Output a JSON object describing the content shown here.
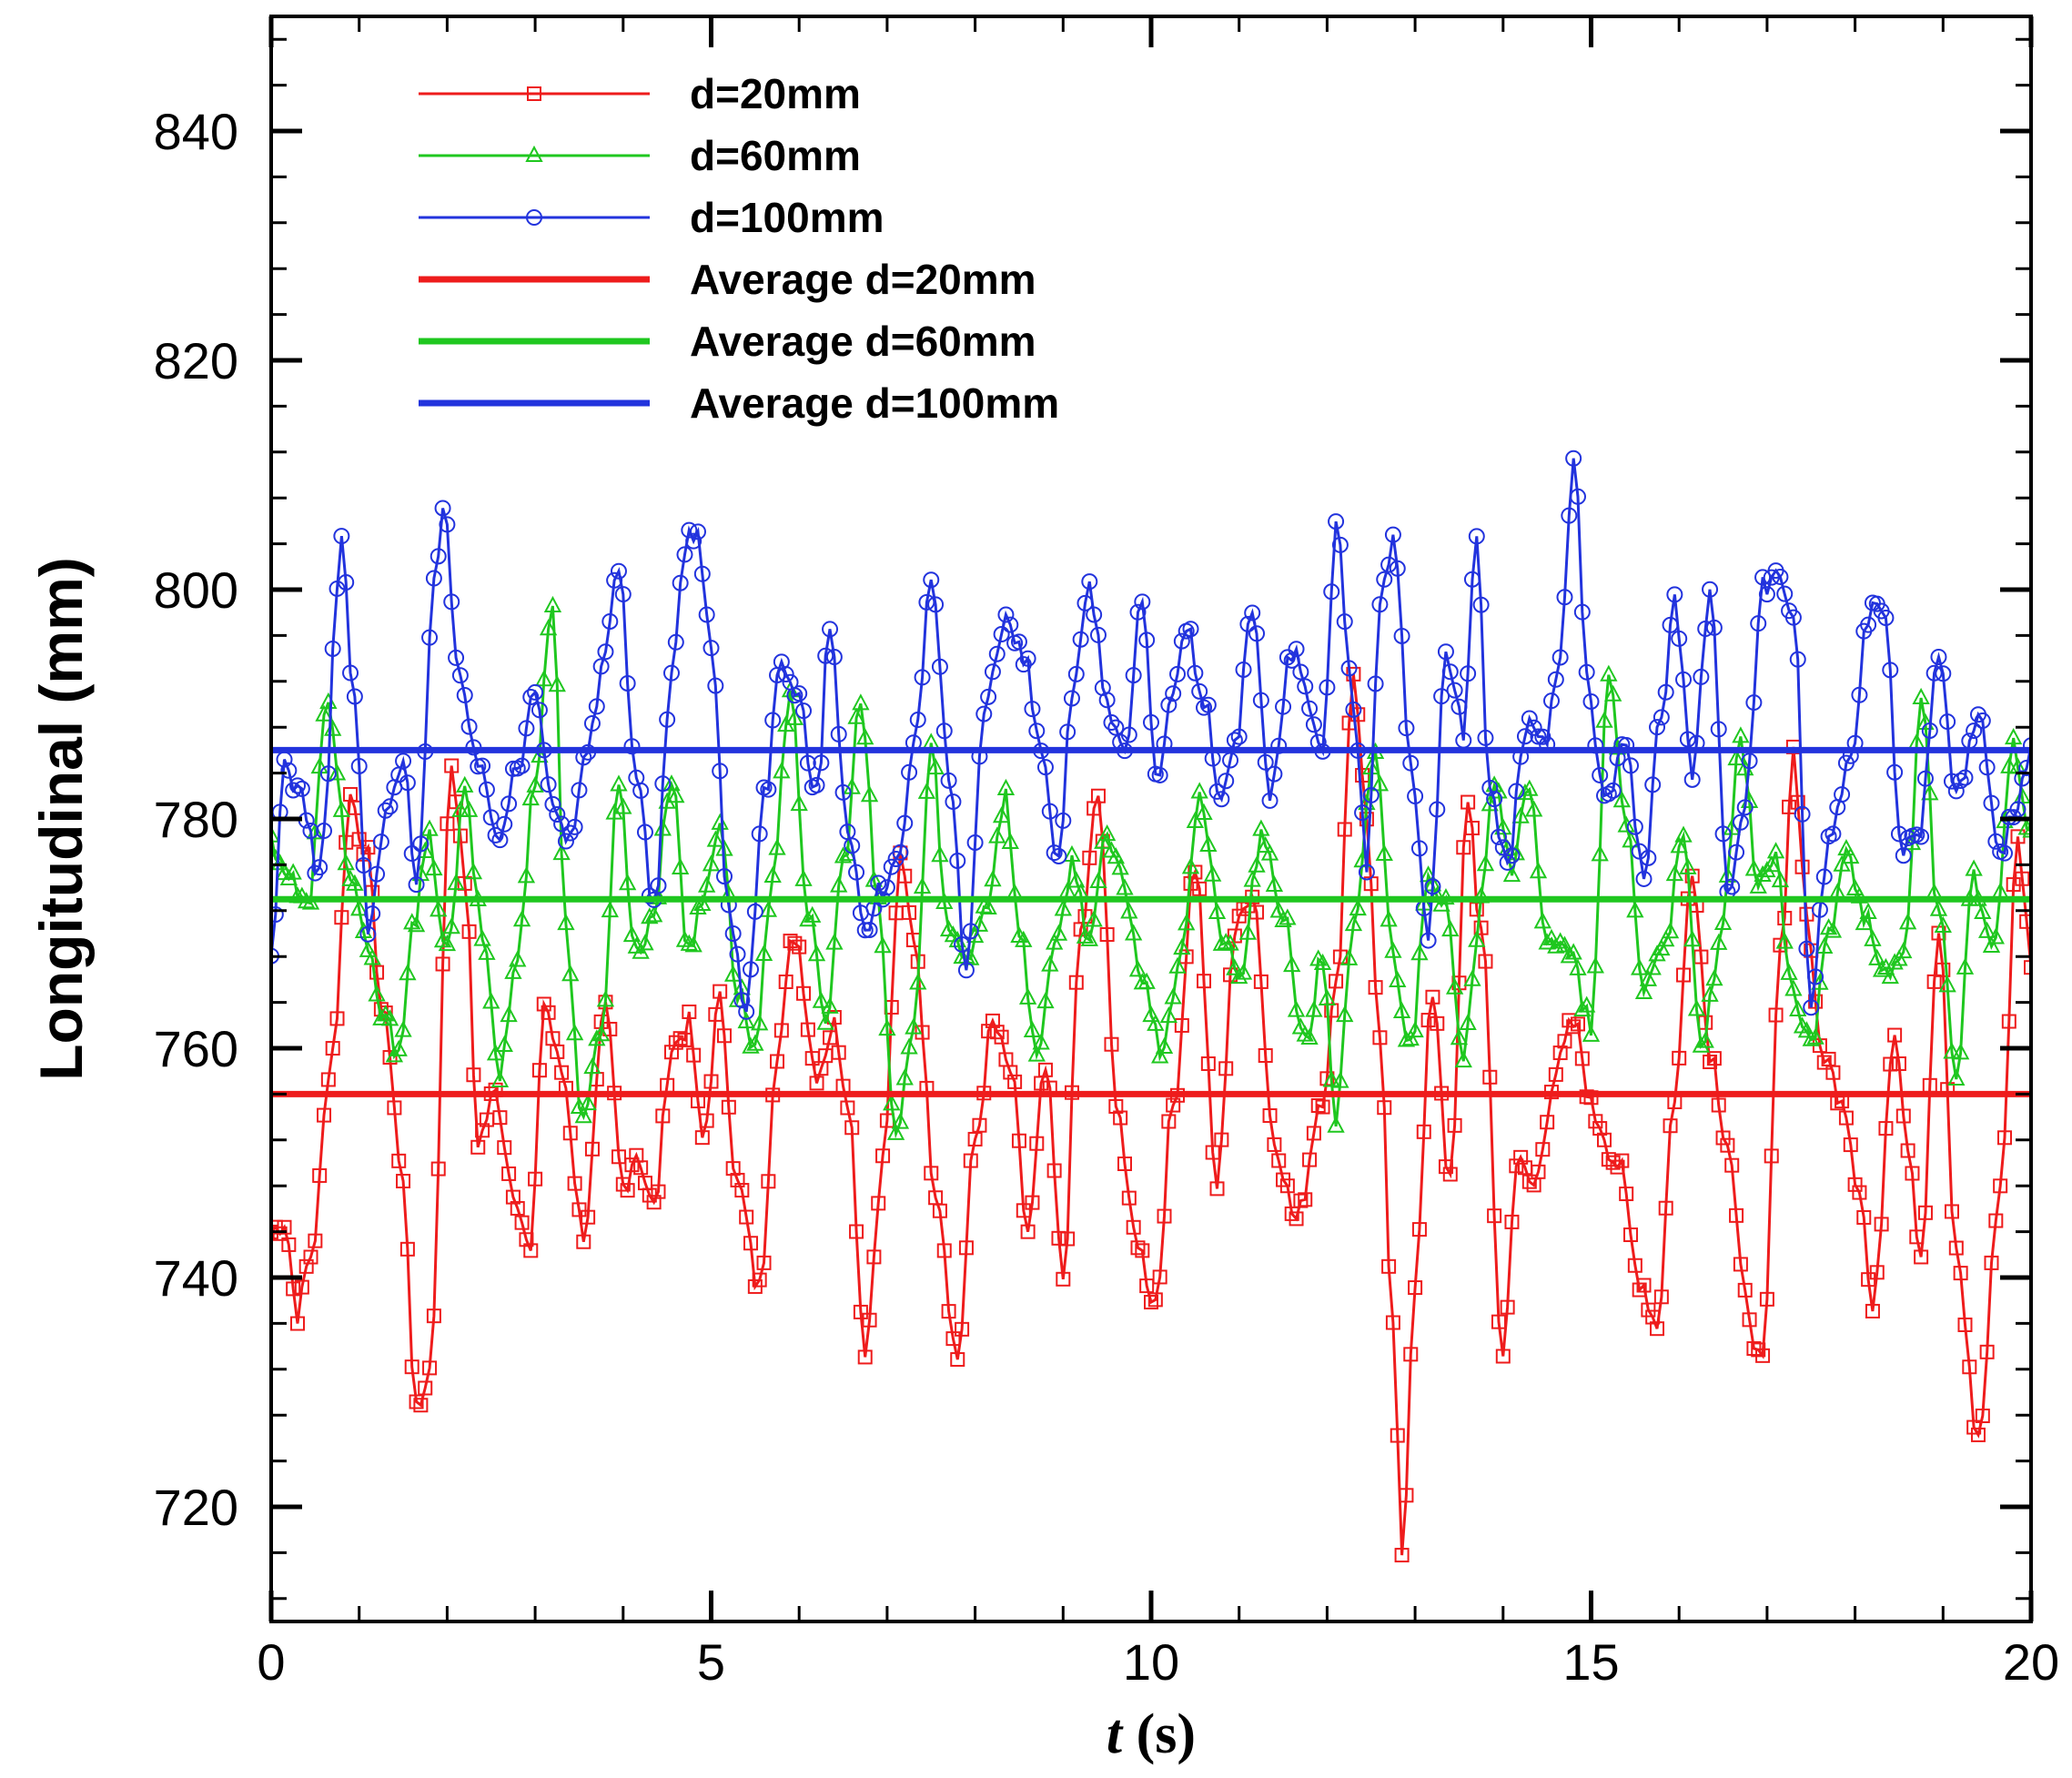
{
  "chart_data": {
    "type": "line",
    "title": "",
    "xlabel_italic": "t",
    "xlabel_rest": " (s)",
    "ylabel": "Longitudinal (mm)",
    "xlim": [
      0,
      20
    ],
    "ylim": [
      710,
      850
    ],
    "x_major_ticks": [
      0,
      5,
      10,
      15,
      20
    ],
    "y_major_ticks": [
      720,
      740,
      760,
      780,
      800,
      820,
      840
    ],
    "x_tick_labels": [
      "0",
      "5",
      "10",
      "15",
      "20"
    ],
    "y_tick_labels": [
      "720",
      "740",
      "760",
      "780",
      "800",
      "820",
      "840"
    ],
    "x_minor_step": 1,
    "y_minor_step": 4,
    "legend_position": "top-left",
    "series": [
      {
        "name": "d=20mm",
        "color": "#ee1c1c",
        "marker": "square",
        "key_points": [
          [
            0,
            744
          ],
          [
            0.15,
            745
          ],
          [
            0.3,
            737
          ],
          [
            0.45,
            742
          ],
          [
            0.7,
            760
          ],
          [
            0.9,
            782
          ],
          [
            1.05,
            778
          ],
          [
            1.3,
            762
          ],
          [
            1.5,
            748
          ],
          [
            1.65,
            728
          ],
          [
            1.8,
            732
          ],
          [
            2.05,
            785
          ],
          [
            2.2,
            775
          ],
          [
            2.35,
            752
          ],
          [
            2.55,
            756
          ],
          [
            2.75,
            748
          ],
          [
            2.95,
            742
          ],
          [
            3.1,
            764
          ],
          [
            3.3,
            758
          ],
          [
            3.55,
            744
          ],
          [
            3.8,
            763
          ],
          [
            4.0,
            748
          ],
          [
            4.15,
            751
          ],
          [
            4.35,
            746
          ],
          [
            4.55,
            760
          ],
          [
            4.75,
            762
          ],
          [
            4.9,
            752
          ],
          [
            5.1,
            764
          ],
          [
            5.3,
            748
          ],
          [
            5.55,
            739
          ],
          [
            5.75,
            760
          ],
          [
            5.95,
            770
          ],
          [
            6.2,
            758
          ],
          [
            6.4,
            762
          ],
          [
            6.55,
            756
          ],
          [
            6.75,
            734
          ],
          [
            6.95,
            750
          ],
          [
            7.15,
            776
          ],
          [
            7.3,
            770
          ],
          [
            7.55,
            748
          ],
          [
            7.8,
            733
          ],
          [
            8.0,
            752
          ],
          [
            8.2,
            762
          ],
          [
            8.4,
            758
          ],
          [
            8.6,
            744
          ],
          [
            8.8,
            758
          ],
          [
            9.0,
            740
          ],
          [
            9.2,
            770
          ],
          [
            9.4,
            782
          ],
          [
            9.6,
            756
          ],
          [
            9.8,
            744
          ],
          [
            10.05,
            738
          ],
          [
            10.25,
            755
          ],
          [
            10.5,
            776
          ],
          [
            10.75,
            748
          ],
          [
            10.95,
            770
          ],
          [
            11.15,
            774
          ],
          [
            11.4,
            752
          ],
          [
            11.65,
            745
          ],
          [
            11.95,
            756
          ],
          [
            12.1,
            765
          ],
          [
            12.3,
            793
          ],
          [
            12.45,
            780
          ],
          [
            12.6,
            760
          ],
          [
            12.75,
            735
          ],
          [
            12.85,
            716
          ],
          [
            13.0,
            740
          ],
          [
            13.2,
            765
          ],
          [
            13.4,
            748
          ],
          [
            13.6,
            782
          ],
          [
            13.75,
            770
          ],
          [
            14.0,
            733
          ],
          [
            14.15,
            750
          ],
          [
            14.35,
            748
          ],
          [
            14.6,
            758
          ],
          [
            14.8,
            762
          ],
          [
            15.05,
            754
          ],
          [
            15.3,
            750
          ],
          [
            15.55,
            740
          ],
          [
            15.75,
            736
          ],
          [
            15.95,
            756
          ],
          [
            16.15,
            776
          ],
          [
            16.35,
            760
          ],
          [
            16.55,
            752
          ],
          [
            16.75,
            738
          ],
          [
            16.95,
            732
          ],
          [
            17.15,
            768
          ],
          [
            17.3,
            786
          ],
          [
            17.45,
            772
          ],
          [
            17.6,
            760
          ],
          [
            17.85,
            756
          ],
          [
            18.05,
            748
          ],
          [
            18.2,
            737
          ],
          [
            18.45,
            762
          ],
          [
            18.6,
            752
          ],
          [
            18.75,
            742
          ],
          [
            18.95,
            770
          ],
          [
            19.15,
            742
          ],
          [
            19.4,
            726
          ],
          [
            19.65,
            748
          ],
          [
            19.85,
            778
          ],
          [
            20.0,
            768
          ]
        ]
      },
      {
        "name": "d=60mm",
        "color": "#1fc71f",
        "marker": "triangle",
        "key_points": [
          [
            0,
            778
          ],
          [
            0.2,
            775
          ],
          [
            0.4,
            772
          ],
          [
            0.65,
            790
          ],
          [
            0.9,
            775
          ],
          [
            1.1,
            768
          ],
          [
            1.3,
            762
          ],
          [
            1.45,
            760
          ],
          [
            1.6,
            770
          ],
          [
            1.8,
            778
          ],
          [
            2.0,
            768
          ],
          [
            2.2,
            782
          ],
          [
            2.4,
            770
          ],
          [
            2.6,
            758
          ],
          [
            2.8,
            768
          ],
          [
            3.0,
            784
          ],
          [
            3.2,
            799
          ],
          [
            3.35,
            770
          ],
          [
            3.55,
            753
          ],
          [
            3.75,
            762
          ],
          [
            3.95,
            783
          ],
          [
            4.15,
            768
          ],
          [
            4.35,
            772
          ],
          [
            4.55,
            784
          ],
          [
            4.75,
            768
          ],
          [
            4.9,
            773
          ],
          [
            5.1,
            780
          ],
          [
            5.3,
            765
          ],
          [
            5.5,
            760
          ],
          [
            5.7,
            774
          ],
          [
            5.9,
            792
          ],
          [
            6.1,
            772
          ],
          [
            6.3,
            762
          ],
          [
            6.5,
            776
          ],
          [
            6.7,
            790
          ],
          [
            6.9,
            772
          ],
          [
            7.1,
            752
          ],
          [
            7.3,
            762
          ],
          [
            7.5,
            786
          ],
          [
            7.7,
            770
          ],
          [
            7.9,
            768
          ],
          [
            8.1,
            772
          ],
          [
            8.35,
            782
          ],
          [
            8.5,
            770
          ],
          [
            8.7,
            760
          ],
          [
            8.9,
            768
          ],
          [
            9.1,
            776
          ],
          [
            9.3,
            770
          ],
          [
            9.5,
            778
          ],
          [
            9.7,
            774
          ],
          [
            9.9,
            766
          ],
          [
            10.1,
            760
          ],
          [
            10.3,
            766
          ],
          [
            10.55,
            782
          ],
          [
            10.8,
            770
          ],
          [
            11.0,
            766
          ],
          [
            11.25,
            778
          ],
          [
            11.5,
            772
          ],
          [
            11.75,
            760
          ],
          [
            11.95,
            768
          ],
          [
            12.1,
            754
          ],
          [
            12.3,
            770
          ],
          [
            12.55,
            786
          ],
          [
            12.75,
            768
          ],
          [
            12.95,
            760
          ],
          [
            13.15,
            776
          ],
          [
            13.35,
            772
          ],
          [
            13.55,
            758
          ],
          [
            13.7,
            770
          ],
          [
            13.9,
            784
          ],
          [
            14.1,
            776
          ],
          [
            14.3,
            782
          ],
          [
            14.5,
            770
          ],
          [
            14.75,
            768
          ],
          [
            15.0,
            762
          ],
          [
            15.2,
            792
          ],
          [
            15.4,
            780
          ],
          [
            15.6,
            765
          ],
          [
            15.85,
            770
          ],
          [
            16.05,
            778
          ],
          [
            16.25,
            760
          ],
          [
            16.45,
            768
          ],
          [
            16.7,
            786
          ],
          [
            16.9,
            775
          ],
          [
            17.1,
            776
          ],
          [
            17.3,
            764
          ],
          [
            17.5,
            760
          ],
          [
            17.7,
            770
          ],
          [
            17.9,
            778
          ],
          [
            18.1,
            772
          ],
          [
            18.3,
            766
          ],
          [
            18.55,
            768
          ],
          [
            18.75,
            790
          ],
          [
            18.95,
            772
          ],
          [
            19.15,
            758
          ],
          [
            19.35,
            775
          ],
          [
            19.55,
            768
          ],
          [
            19.8,
            786
          ],
          [
            20.0,
            778
          ]
        ]
      },
      {
        "name": "d=100mm",
        "color": "#2233dd",
        "marker": "circle",
        "key_points": [
          [
            0,
            767
          ],
          [
            0.15,
            785
          ],
          [
            0.35,
            782
          ],
          [
            0.55,
            775
          ],
          [
            0.8,
            804
          ],
          [
            0.95,
            790
          ],
          [
            1.1,
            770
          ],
          [
            1.3,
            780
          ],
          [
            1.5,
            785
          ],
          [
            1.65,
            774
          ],
          [
            1.85,
            800
          ],
          [
            1.95,
            808
          ],
          [
            2.15,
            792
          ],
          [
            2.35,
            784
          ],
          [
            2.6,
            779
          ],
          [
            2.8,
            784
          ],
          [
            3.0,
            792
          ],
          [
            3.2,
            782
          ],
          [
            3.4,
            778
          ],
          [
            3.6,
            786
          ],
          [
            3.8,
            795
          ],
          [
            3.95,
            802
          ],
          [
            4.15,
            784
          ],
          [
            4.35,
            772
          ],
          [
            4.55,
            792
          ],
          [
            4.7,
            804
          ],
          [
            4.85,
            805
          ],
          [
            5.0,
            795
          ],
          [
            5.2,
            772
          ],
          [
            5.4,
            764
          ],
          [
            5.6,
            782
          ],
          [
            5.8,
            794
          ],
          [
            6.0,
            790
          ],
          [
            6.2,
            782
          ],
          [
            6.35,
            797
          ],
          [
            6.55,
            780
          ],
          [
            6.75,
            770
          ],
          [
            6.95,
            774
          ],
          [
            7.15,
            778
          ],
          [
            7.35,
            788
          ],
          [
            7.5,
            801
          ],
          [
            7.7,
            784
          ],
          [
            7.9,
            767
          ],
          [
            8.1,
            790
          ],
          [
            8.35,
            797
          ],
          [
            8.55,
            794
          ],
          [
            8.75,
            786
          ],
          [
            8.95,
            776
          ],
          [
            9.1,
            790
          ],
          [
            9.3,
            800
          ],
          [
            9.5,
            790
          ],
          [
            9.7,
            786
          ],
          [
            9.9,
            800
          ],
          [
            10.05,
            784
          ],
          [
            10.25,
            790
          ],
          [
            10.4,
            797
          ],
          [
            10.6,
            790
          ],
          [
            10.8,
            782
          ],
          [
            10.95,
            786
          ],
          [
            11.15,
            798
          ],
          [
            11.35,
            782
          ],
          [
            11.6,
            795
          ],
          [
            11.8,
            790
          ],
          [
            11.95,
            786
          ],
          [
            12.1,
            806
          ],
          [
            12.3,
            790
          ],
          [
            12.45,
            776
          ],
          [
            12.6,
            798
          ],
          [
            12.75,
            805
          ],
          [
            12.95,
            785
          ],
          [
            13.15,
            770
          ],
          [
            13.35,
            794
          ],
          [
            13.55,
            788
          ],
          [
            13.7,
            805
          ],
          [
            13.85,
            782
          ],
          [
            14.05,
            776
          ],
          [
            14.25,
            788
          ],
          [
            14.45,
            786
          ],
          [
            14.65,
            794
          ],
          [
            14.8,
            812
          ],
          [
            14.95,
            792
          ],
          [
            15.15,
            782
          ],
          [
            15.4,
            786
          ],
          [
            15.6,
            775
          ],
          [
            15.8,
            790
          ],
          [
            15.95,
            799
          ],
          [
            16.15,
            784
          ],
          [
            16.35,
            800
          ],
          [
            16.55,
            774
          ],
          [
            16.75,
            782
          ],
          [
            16.95,
            800
          ],
          [
            17.1,
            802
          ],
          [
            17.3,
            798
          ],
          [
            17.5,
            764
          ],
          [
            17.7,
            778
          ],
          [
            17.95,
            786
          ],
          [
            18.15,
            798
          ],
          [
            18.35,
            798
          ],
          [
            18.5,
            778
          ],
          [
            18.7,
            778
          ],
          [
            18.95,
            794
          ],
          [
            19.15,
            782
          ],
          [
            19.4,
            789
          ],
          [
            19.65,
            776
          ],
          [
            19.85,
            782
          ],
          [
            20.0,
            786
          ]
        ]
      },
      {
        "name": "Average d=20mm",
        "color": "#ee1c1c",
        "marker": "none",
        "constant": 756
      },
      {
        "name": "Average d=60mm",
        "color": "#1fc71f",
        "marker": "none",
        "constant": 773
      },
      {
        "name": "Average d=100mm",
        "color": "#2233dd",
        "marker": "none",
        "constant": 786
      }
    ]
  }
}
